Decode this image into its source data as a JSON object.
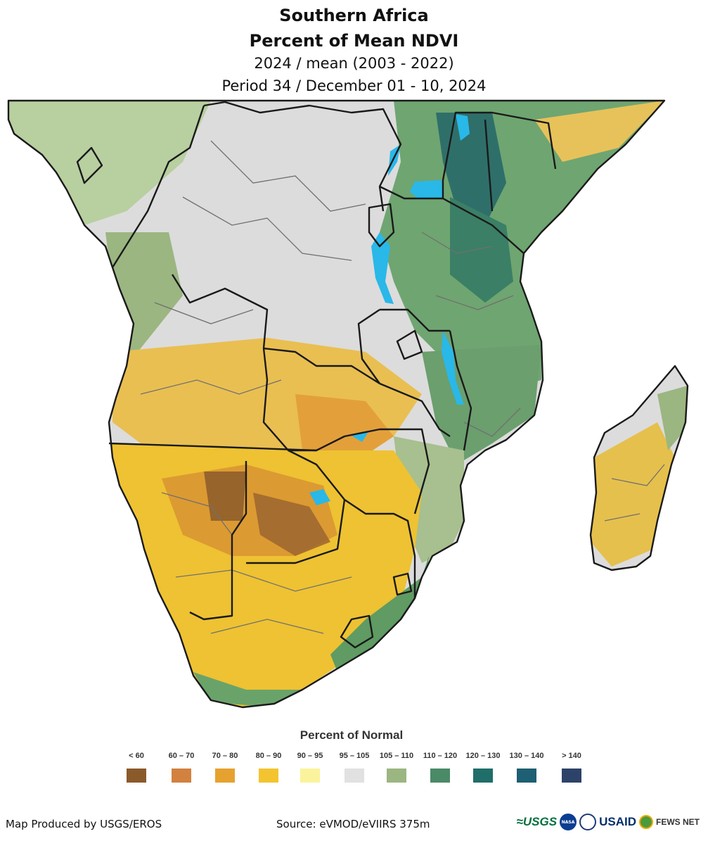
{
  "title": {
    "line1": "Southern Africa",
    "line2": "Percent of Mean NDVI",
    "line3": "2024 / mean (2003 - 2022)",
    "line4": "Period 34 / December 01 - 10, 2024"
  },
  "legend": {
    "title": "Percent of Normal",
    "items": [
      {
        "label": "< 60",
        "color": "#8b5a2b"
      },
      {
        "label": "60 – 70",
        "color": "#d2813f"
      },
      {
        "label": "70 – 80",
        "color": "#e6a22f"
      },
      {
        "label": "80 – 90",
        "color": "#f4c430"
      },
      {
        "label": "90 – 95",
        "color": "#fbf39b"
      },
      {
        "label": "95 – 105",
        "color": "#e1e1e1"
      },
      {
        "label": "105 – 110",
        "color": "#9bb681"
      },
      {
        "label": "110 – 120",
        "color": "#4a8a67"
      },
      {
        "label": "120 – 130",
        "color": "#1f6e6a"
      },
      {
        "label": "130 – 140",
        "color": "#1e5f73"
      },
      {
        "label": "> 140",
        "color": "#2d4268"
      }
    ]
  },
  "map": {
    "water_color": "#29b8e8",
    "border_color": "#1a1a1a",
    "admin_color": "#707070"
  },
  "footer": {
    "credit": "Map Produced by USGS/EROS",
    "source": "Source: eVMOD/eVIIRS 375m",
    "logos": {
      "usgs": "≈USGS",
      "nasa": "NASA",
      "usaid": "USAID",
      "fewsnet": "FEWS NET"
    }
  }
}
